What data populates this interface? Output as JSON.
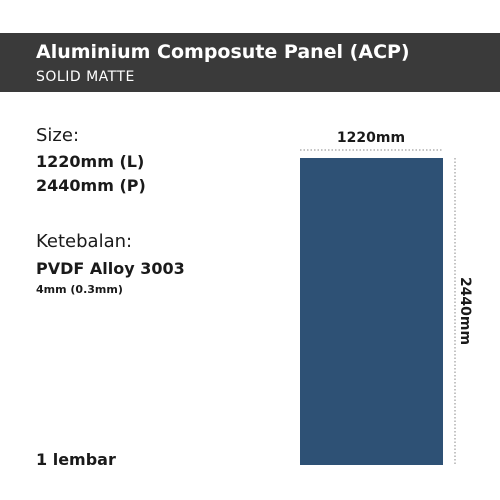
{
  "header": {
    "title": "Aluminium Composute Panel (ACP)",
    "subtitle": "SOLID MATTE"
  },
  "size": {
    "label": "Size:",
    "width": "1220mm (L)",
    "height": "2440mm (P)"
  },
  "thickness": {
    "label": "Ketebalan:",
    "material": "PVDF Alloy 3003",
    "value": "4mm (0.3mm)"
  },
  "quantity": "1 lembar",
  "diagram": {
    "width_label": "1220mm",
    "height_label": "2440mm"
  }
}
